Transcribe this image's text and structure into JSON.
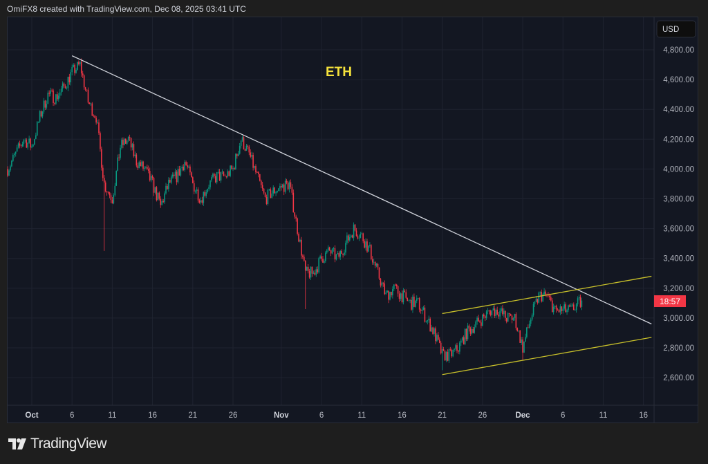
{
  "header": {
    "text": "OmiFX8 created with TradingView.com, Dec 08, 2025 03:41 UTC"
  },
  "footer": {
    "brand": "TradingView"
  },
  "colors": {
    "up": "#089981",
    "down": "#f23645",
    "trendline": "#d1d4dc",
    "channel": "#c9c12a",
    "label": "#f5e23c",
    "background": "#131722"
  },
  "chart_data": {
    "type": "candlestick",
    "title": "ETH",
    "currency": "USD",
    "countdown": "18:57",
    "grid": true,
    "ylim": [
      2400,
      4950
    ],
    "y_ticks": [
      "4,800.00",
      "4,600.00",
      "4,400.00",
      "4,200.00",
      "4,000.00",
      "3,800.00",
      "3,600.00",
      "3,400.00",
      "3,200.00",
      "3,000.00",
      "2,800.00",
      "2,600.00"
    ],
    "x_ticks": [
      "Oct",
      "6",
      "11",
      "16",
      "21",
      "26",
      "Nov",
      "6",
      "11",
      "16",
      "21",
      "26",
      "Dec",
      "6",
      "11",
      "16"
    ],
    "x_tick_days": [
      0,
      5,
      10,
      15,
      20,
      25,
      31,
      36,
      41,
      46,
      51,
      56,
      61,
      66,
      71,
      76
    ],
    "x_day_origin": "2025-10-01",
    "approx_daily_closes": [
      [
        "2025-09-28",
        4000
      ],
      [
        "2025-09-29",
        4100
      ],
      [
        "2025-09-30",
        4200
      ],
      [
        "2025-10-01",
        4150
      ],
      [
        "2025-10-02",
        4350
      ],
      [
        "2025-10-03",
        4500
      ],
      [
        "2025-10-04",
        4480
      ],
      [
        "2025-10-05",
        4550
      ],
      [
        "2025-10-06",
        4650
      ],
      [
        "2025-10-07",
        4700
      ],
      [
        "2025-10-08",
        4450
      ],
      [
        "2025-10-09",
        4350
      ],
      [
        "2025-10-10",
        3900
      ],
      [
        "2025-10-11",
        3800
      ],
      [
        "2025-10-12",
        4150
      ],
      [
        "2025-10-13",
        4200
      ],
      [
        "2025-10-14",
        4050
      ],
      [
        "2025-10-15",
        4000
      ],
      [
        "2025-10-16",
        3900
      ],
      [
        "2025-10-17",
        3750
      ],
      [
        "2025-10-18",
        3900
      ],
      [
        "2025-10-19",
        3950
      ],
      [
        "2025-10-20",
        4050
      ],
      [
        "2025-10-21",
        3900
      ],
      [
        "2025-10-22",
        3800
      ],
      [
        "2025-10-23",
        3900
      ],
      [
        "2025-10-24",
        3950
      ],
      [
        "2025-10-25",
        3950
      ],
      [
        "2025-10-26",
        4000
      ],
      [
        "2025-10-27",
        4200
      ],
      [
        "2025-10-28",
        4100
      ],
      [
        "2025-10-29",
        3950
      ],
      [
        "2025-10-30",
        3800
      ],
      [
        "2025-10-31",
        3850
      ],
      [
        "2025-11-01",
        3880
      ],
      [
        "2025-11-02",
        3900
      ],
      [
        "2025-11-03",
        3600
      ],
      [
        "2025-11-04",
        3300
      ],
      [
        "2025-11-05",
        3300
      ],
      [
        "2025-11-06",
        3400
      ],
      [
        "2025-11-07",
        3450
      ],
      [
        "2025-11-08",
        3400
      ],
      [
        "2025-11-09",
        3500
      ],
      [
        "2025-11-10",
        3600
      ],
      [
        "2025-11-11",
        3550
      ],
      [
        "2025-11-12",
        3450
      ],
      [
        "2025-11-13",
        3300
      ],
      [
        "2025-11-14",
        3150
      ],
      [
        "2025-11-15",
        3200
      ],
      [
        "2025-11-16",
        3150
      ],
      [
        "2025-11-17",
        3100
      ],
      [
        "2025-11-18",
        3100
      ],
      [
        "2025-11-19",
        3000
      ],
      [
        "2025-11-20",
        2900
      ],
      [
        "2025-11-21",
        2750
      ],
      [
        "2025-11-22",
        2750
      ],
      [
        "2025-11-23",
        2800
      ],
      [
        "2025-11-24",
        2900
      ],
      [
        "2025-11-25",
        2950
      ],
      [
        "2025-11-26",
        3000
      ],
      [
        "2025-11-27",
        3050
      ],
      [
        "2025-11-28",
        3050
      ],
      [
        "2025-11-29",
        3000
      ],
      [
        "2025-11-30",
        3000
      ],
      [
        "2025-12-01",
        2800
      ],
      [
        "2025-12-02",
        3000
      ],
      [
        "2025-12-03",
        3150
      ],
      [
        "2025-12-04",
        3150
      ],
      [
        "2025-12-05",
        3050
      ],
      [
        "2025-12-06",
        3050
      ],
      [
        "2025-12-07",
        3050
      ],
      [
        "2025-12-08",
        3100
      ]
    ],
    "notable_lows": [
      [
        "2025-10-10",
        3450
      ],
      [
        "2025-11-04",
        3060
      ],
      [
        "2025-11-21",
        2650
      ],
      [
        "2025-12-01",
        2720
      ]
    ],
    "drawings": [
      {
        "kind": "trendline",
        "from": [
          "2025-10-06",
          4760
        ],
        "to": [
          "2025-12-17",
          2960
        ]
      },
      {
        "kind": "channel-upper",
        "from": [
          "2025-11-21",
          3030
        ],
        "to": [
          "2025-12-17",
          3280
        ]
      },
      {
        "kind": "channel-lower",
        "from": [
          "2025-11-21",
          2620
        ],
        "to": [
          "2025-12-17",
          2870
        ]
      }
    ]
  }
}
